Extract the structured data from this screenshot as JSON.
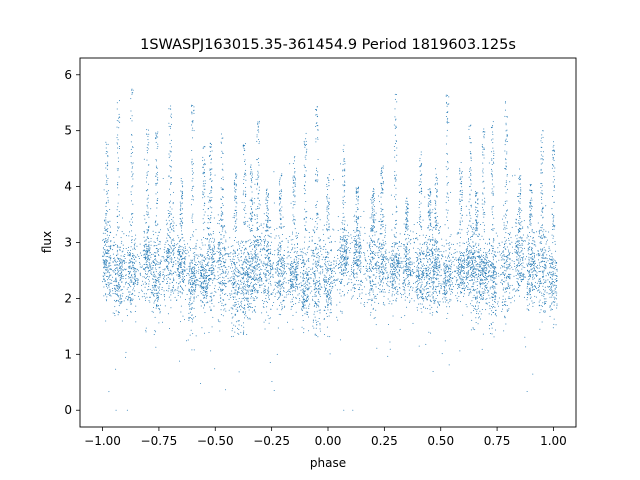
{
  "chart_data": {
    "type": "scatter",
    "title": "1SWASPJ163015.35-361454.9 Period 1819603.125s",
    "xlabel": "phase",
    "ylabel": "flux",
    "xlim": [
      -1.1,
      1.1
    ],
    "ylim": [
      -0.3,
      6.3
    ],
    "xticks": [
      -1.0,
      -0.75,
      -0.5,
      -0.25,
      0.0,
      0.25,
      0.5,
      0.75,
      1.0
    ],
    "xtick_labels": [
      "−1.00",
      "−0.75",
      "−0.50",
      "−0.25",
      "0.00",
      "0.25",
      "0.50",
      "0.75",
      "1.00"
    ],
    "yticks": [
      0,
      1,
      2,
      3,
      4,
      5,
      6
    ],
    "ytick_labels": [
      "0",
      "1",
      "2",
      "3",
      "4",
      "5",
      "6"
    ],
    "grid": false,
    "marker_color": "#1f77b4",
    "phase_range": [
      -1.0,
      1.0
    ],
    "period_repeat": 1.0,
    "typical_flux_range": [
      1.8,
      3.2
    ],
    "flux_min": 0.0,
    "flux_max": 5.9,
    "spike_phases": [
      -0.98,
      -0.93,
      -0.87,
      -0.8,
      -0.76,
      -0.7,
      -0.65,
      -0.6,
      -0.55,
      -0.52,
      -0.47,
      -0.41,
      -0.37,
      -0.34,
      -0.31,
      -0.27,
      -0.21,
      -0.15,
      -0.1,
      -0.05,
      0.0,
      0.07,
      0.13,
      0.2,
      0.24,
      0.3,
      0.35,
      0.41,
      0.45,
      0.48,
      0.53,
      0.59,
      0.63,
      0.66,
      0.69,
      0.73,
      0.79,
      0.85,
      0.9,
      0.95,
      1.0
    ],
    "zero_flux_phases": [
      -0.94,
      -0.89,
      0.07,
      0.11
    ]
  }
}
